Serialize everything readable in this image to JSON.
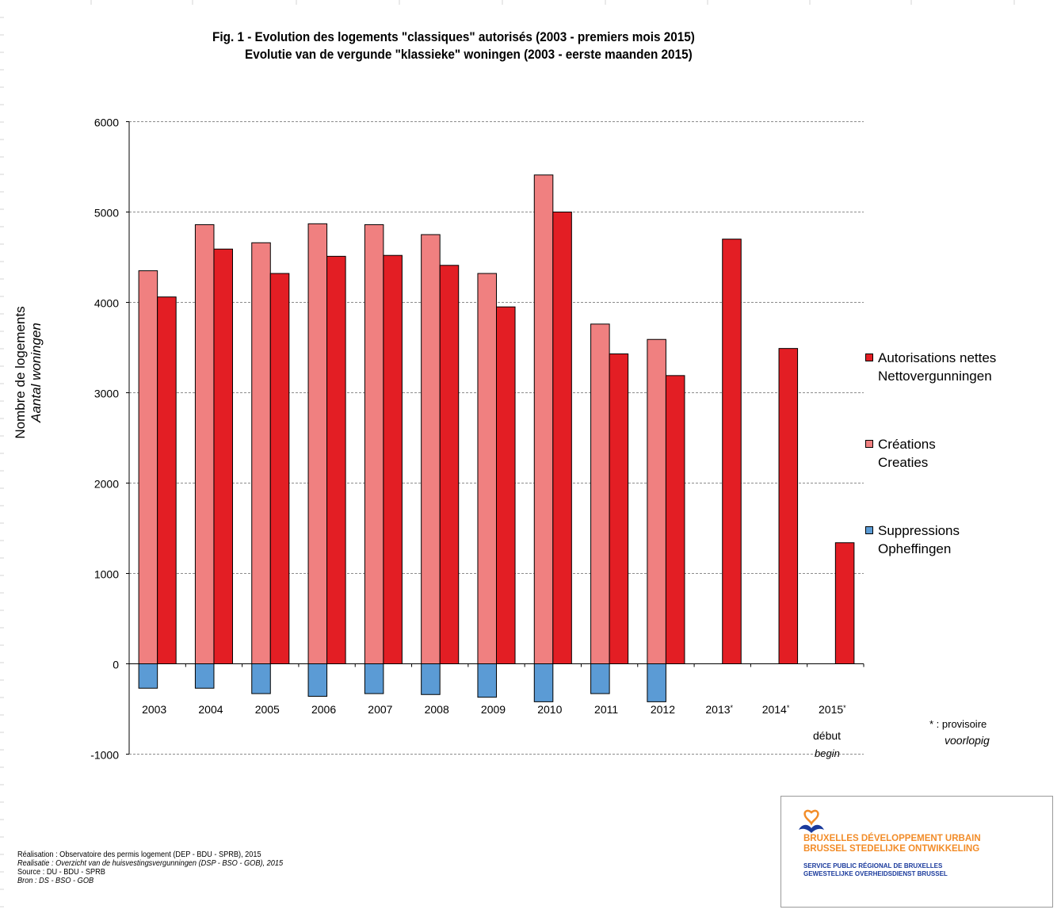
{
  "chart_data": {
    "type": "bar",
    "title": "Fig.  1 - Evolution  des logements \"classiques\" autorisés (2003 - premiers mois 2015)",
    "subtitle": "Evolutie  van de vergunde  \"klassieke\" woningen (2003 - eerste maanden 2015)",
    "ylabel": "Nombre de logements",
    "ylabel2": "Aantal woningen",
    "xlabel": "",
    "ylim": [
      -1000,
      6000
    ],
    "yticks": [
      -1000,
      0,
      1000,
      2000,
      3000,
      4000,
      5000,
      6000
    ],
    "grid": true,
    "legend_position": "right",
    "categories": [
      "2003",
      "2004",
      "2005",
      "2006",
      "2007",
      "2008",
      "2009",
      "2010",
      "2011",
      "2012",
      "2013*",
      "2014*",
      "2015*"
    ],
    "series": [
      {
        "key": "creations",
        "name": "Créations",
        "name2": "Creaties",
        "color": "#f08080",
        "values": [
          4350,
          4860,
          4660,
          4870,
          4860,
          4750,
          4320,
          5410,
          3760,
          3590,
          null,
          null,
          null
        ]
      },
      {
        "key": "net",
        "name": "Autorisations nettes",
        "name2": "Nettovergunningen",
        "color": "#e31e24",
        "values": [
          4060,
          4590,
          4320,
          4510,
          4520,
          4410,
          3950,
          5000,
          3430,
          3190,
          4700,
          3490,
          1340
        ]
      },
      {
        "key": "suppressions",
        "name": "Suppressions",
        "name2": "Opheffingen",
        "color": "#5b9bd5",
        "values": [
          -270,
          -270,
          -330,
          -360,
          -330,
          -340,
          -370,
          -420,
          -330,
          -420,
          null,
          null,
          null
        ]
      }
    ],
    "legend_order": [
      "net",
      "creations",
      "suppressions"
    ],
    "annotations": {
      "debut": "début",
      "begin": "begin",
      "provisoire_mark": "* : provisoire",
      "voorlopig": "voorlopig"
    }
  },
  "credits": {
    "line1": "Réalisation : Observatoire  des permis  logement  (DEP - BDU - SPRB), 2015",
    "line2": "Realisatie : Overzicht van de huisvestingsvergunningen   (DSP - BSO - GOB), 2015",
    "line3": "Source  : DU - BDU - SPRB",
    "line4": "Bron :  DS - BSO - GOB"
  },
  "logo": {
    "line1": "BRUXELLES DÉVELOPPEMENT URBAIN",
    "line2": "BRUSSEL STEDELIJKE ONTWIKKELING",
    "line3": "SERVICE PUBLIC RÉGIONAL DE BRUXELLES",
    "line4": "GEWESTELIJKE OVERHEIDSDIENST BRUSSEL",
    "orange": "#f28c28",
    "blue": "#1a3a9c"
  }
}
